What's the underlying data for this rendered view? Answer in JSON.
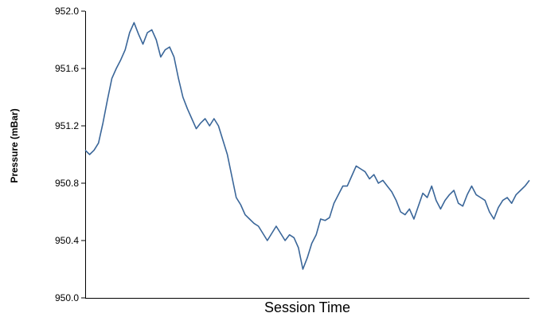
{
  "chart_data": {
    "type": "line",
    "title": "",
    "xlabel": "Session Time",
    "ylabel": "Pressure (mBar)",
    "ylim": [
      950.0,
      952.0
    ],
    "yticks": [
      "950.0",
      "950.4",
      "950.8",
      "951.2",
      "951.6",
      "952.0"
    ],
    "xlim": [
      0,
      100
    ],
    "grid": false,
    "line_color": "#3a6699",
    "series": [
      {
        "name": "",
        "x": [
          0,
          1,
          2,
          3,
          4,
          5,
          6,
          7,
          8,
          9,
          10,
          11,
          12,
          13,
          14,
          15,
          16,
          17,
          18,
          19,
          20,
          21,
          22,
          23,
          24,
          25,
          26,
          27,
          28,
          29,
          30,
          31,
          32,
          33,
          34,
          35,
          36,
          37,
          38,
          39,
          40,
          41,
          42,
          43,
          44,
          45,
          46,
          47,
          48,
          49,
          50,
          51,
          52,
          53,
          54,
          55,
          56,
          57,
          58,
          59,
          60,
          61,
          62,
          63,
          64,
          65,
          66,
          67,
          68,
          69,
          70,
          71,
          72,
          73,
          74,
          75,
          76,
          77,
          78,
          79,
          80,
          81,
          82,
          83,
          84,
          85,
          86,
          87,
          88,
          89,
          90,
          91,
          92,
          93,
          94,
          95,
          96,
          97,
          98,
          99,
          100
        ],
        "values": [
          951.03,
          951.0,
          951.03,
          951.08,
          951.22,
          951.38,
          951.53,
          951.6,
          951.66,
          951.73,
          951.85,
          951.92,
          951.84,
          951.77,
          951.85,
          951.87,
          951.8,
          951.68,
          951.73,
          951.75,
          951.68,
          951.53,
          951.4,
          951.32,
          951.25,
          951.18,
          951.22,
          951.25,
          951.2,
          951.25,
          951.2,
          951.1,
          951.0,
          950.85,
          950.7,
          950.65,
          950.58,
          950.55,
          950.52,
          950.5,
          950.45,
          950.4,
          950.45,
          950.5,
          950.45,
          950.4,
          950.44,
          950.42,
          950.35,
          950.2,
          950.28,
          950.38,
          950.44,
          950.55,
          950.54,
          950.56,
          950.66,
          950.72,
          950.78,
          950.78,
          950.85,
          950.92,
          950.9,
          950.88,
          950.83,
          950.86,
          950.8,
          950.82,
          950.78,
          950.74,
          950.68,
          950.6,
          950.58,
          950.62,
          950.55,
          950.64,
          950.73,
          950.7,
          950.78,
          950.68,
          950.62,
          950.68,
          950.72,
          950.75,
          950.66,
          950.64,
          950.72,
          950.78,
          950.72,
          950.7,
          950.68,
          950.6,
          950.55,
          950.63,
          950.68,
          950.7,
          950.66,
          950.72,
          950.75,
          950.78,
          950.82
        ]
      }
    ]
  }
}
